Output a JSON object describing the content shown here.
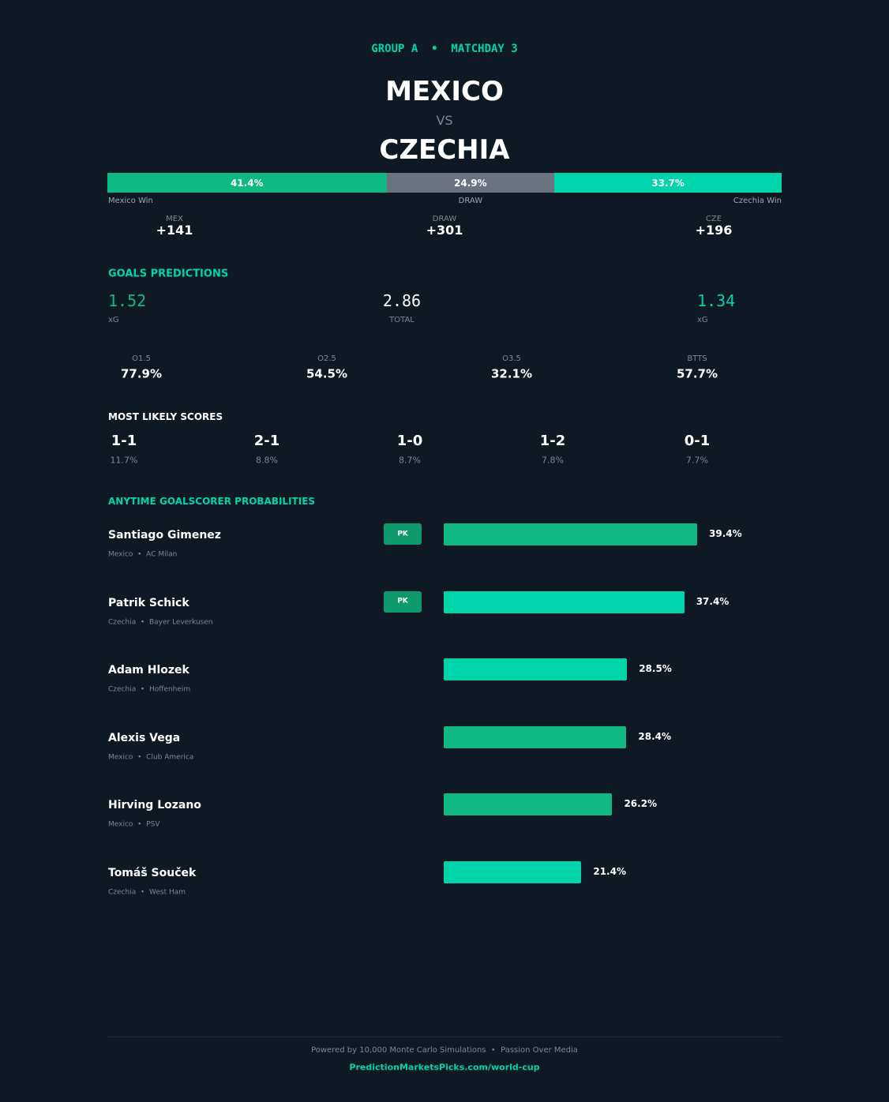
{
  "header": {
    "kicker": "GROUP A  •  MATCHDAY 3",
    "home": "MEXICO",
    "vs": "VS",
    "away": "CZECHIA"
  },
  "outcome": {
    "segments": [
      {
        "name": "Mexico Win",
        "value": 41.4,
        "value_label": "41.4%",
        "color": "#10b981"
      },
      {
        "name": "DRAW",
        "value": 24.9,
        "value_label": "24.9%",
        "color": "#6b7280"
      },
      {
        "name": "Czechia Win",
        "value": 33.7,
        "value_label": "33.7%",
        "color": "#00d4aa"
      }
    ],
    "odds": [
      {
        "label": "MEX",
        "value": "+141"
      },
      {
        "label": "DRAW",
        "value": "+301"
      },
      {
        "label": "CZE",
        "value": "+196"
      }
    ]
  },
  "goals": {
    "title": "GOALS PREDICTIONS",
    "home": {
      "value": "1.52",
      "label": "xG"
    },
    "total": {
      "value": "2.86",
      "label": "TOTAL"
    },
    "away": {
      "value": "1.34",
      "label": "xG"
    },
    "markets": [
      {
        "label": "O1.5",
        "value": "77.9%"
      },
      {
        "label": "O2.5",
        "value": "54.5%"
      },
      {
        "label": "O3.5",
        "value": "32.1%"
      },
      {
        "label": "BTTS",
        "value": "57.7%"
      }
    ]
  },
  "scores": {
    "title": "MOST LIKELY SCORES",
    "items": [
      {
        "score": "1-1",
        "prob": "11.7%"
      },
      {
        "score": "2-1",
        "prob": "8.8%"
      },
      {
        "score": "1-0",
        "prob": "8.7%"
      },
      {
        "score": "1-2",
        "prob": "7.8%"
      },
      {
        "score": "0-1",
        "prob": "7.7%"
      }
    ]
  },
  "scorers": {
    "title": "ANYTIME GOALSCORER PROBABILITIES",
    "players": [
      {
        "name": "Santiago Gimenez",
        "info": "Mexico  •  AC Milan",
        "badge": "PK",
        "value": 39.4,
        "value_label": "39.4%",
        "color": "#10b981"
      },
      {
        "name": "Patrik Schick",
        "info": "Czechia  •  Bayer Leverkusen",
        "badge": "PK",
        "value": 37.4,
        "value_label": "37.4%",
        "color": "#00d4aa"
      },
      {
        "name": "Adam Hlozek",
        "info": "Czechia  •  Hoffenheim",
        "value": 28.5,
        "value_label": "28.5%",
        "color": "#00d4aa"
      },
      {
        "name": "Alexis Vega",
        "info": "Mexico  •  Club America",
        "value": 28.4,
        "value_label": "28.4%",
        "color": "#10b981"
      },
      {
        "name": "Hirving Lozano",
        "info": "Mexico  •  PSV",
        "value": 26.2,
        "value_label": "26.2%",
        "color": "#10b981"
      },
      {
        "name": "Tomáš Souček",
        "info": "Czechia  •  West Ham",
        "value": 21.4,
        "value_label": "21.4%",
        "color": "#00d4aa"
      }
    ]
  },
  "footer": {
    "note": "Powered by 10,000 Monte Carlo Simulations  •  Passion Over Media",
    "link": "PredictionMarketsPicks.com/world-cup"
  }
}
